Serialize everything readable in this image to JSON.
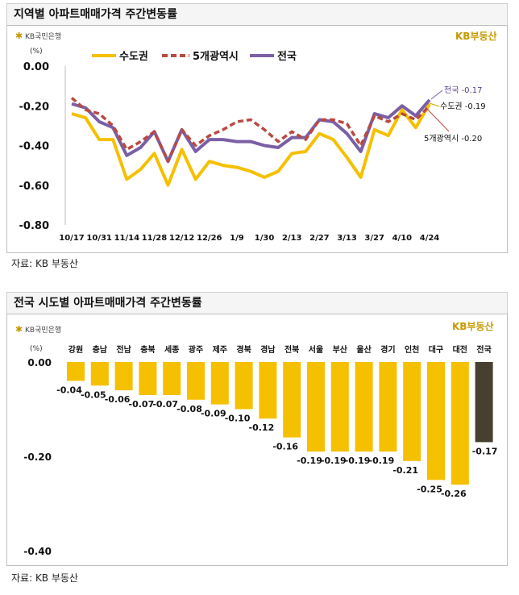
{
  "colors": {
    "metro": "#f5c000",
    "five_city": "#b84a42",
    "national": "#7b5fa5",
    "bar": "#f5c000",
    "bar_national": "#474031",
    "logo": "#c79a00"
  },
  "chart1": {
    "title": "지역별 아파트매매가격 주간변동률",
    "kb_bank": "KB국민은행",
    "kb_brand": "KB부동산",
    "unit": "(%)",
    "source": "자료: KB 부동산",
    "annotations": {
      "national": "전국 -0.17",
      "metro": "수도권 -0.19",
      "five_city": "5개광역시 -0.20"
    }
  },
  "chart2": {
    "title": "전국 시도별 아파트매매가격 주간변동률",
    "kb_bank": "KB국민은행",
    "kb_brand": "KB부동산",
    "unit": "(%)",
    "source": "자료: KB 부동산"
  },
  "chart_data": [
    {
      "type": "line",
      "title": "지역별 아파트매매가격 주간변동률",
      "ylabel": "(%)",
      "ylim": [
        -0.8,
        0.0
      ],
      "yticks": [
        "0.00",
        "-0.20",
        "-0.40",
        "-0.60",
        "-0.80"
      ],
      "x_tick_labels": [
        "10/17",
        "10/31",
        "11/14",
        "11/28",
        "12/12",
        "12/26",
        "1/9",
        "1/30",
        "2/13",
        "2/27",
        "3/13",
        "3/27",
        "4/10",
        "4/24"
      ],
      "legend_position": "top",
      "series": [
        {
          "name": "수도권",
          "values": [
            -0.24,
            -0.26,
            -0.37,
            -0.37,
            -0.57,
            -0.52,
            -0.44,
            -0.6,
            -0.42,
            -0.57,
            -0.48,
            -0.5,
            -0.51,
            -0.53,
            -0.56,
            -0.53,
            -0.44,
            -0.43,
            -0.34,
            -0.37,
            -0.46,
            -0.56,
            -0.32,
            -0.35,
            -0.22,
            -0.31,
            -0.19
          ]
        },
        {
          "name": "5개광역시",
          "values": [
            -0.16,
            -0.22,
            -0.24,
            -0.3,
            -0.42,
            -0.38,
            -0.33,
            -0.48,
            -0.32,
            -0.4,
            -0.35,
            -0.32,
            -0.28,
            -0.27,
            -0.32,
            -0.38,
            -0.33,
            -0.37,
            -0.27,
            -0.27,
            -0.29,
            -0.4,
            -0.25,
            -0.28,
            -0.24,
            -0.27,
            -0.2
          ]
        },
        {
          "name": "전국",
          "values": [
            -0.19,
            -0.21,
            -0.28,
            -0.31,
            -0.45,
            -0.41,
            -0.33,
            -0.48,
            -0.32,
            -0.43,
            -0.37,
            -0.37,
            -0.38,
            -0.38,
            -0.4,
            -0.41,
            -0.36,
            -0.36,
            -0.27,
            -0.28,
            -0.34,
            -0.43,
            -0.24,
            -0.26,
            -0.2,
            -0.25,
            -0.17
          ]
        }
      ]
    },
    {
      "type": "bar",
      "title": "전국 시도별 아파트매매가격 주간변동률",
      "ylabel": "(%)",
      "ylim": [
        -0.4,
        0.0
      ],
      "yticks": [
        "0.00",
        "-0.20",
        "-0.40"
      ],
      "categories": [
        "강원",
        "충남",
        "전남",
        "충북",
        "세종",
        "광주",
        "제주",
        "경북",
        "경남",
        "전북",
        "서울",
        "부산",
        "울산",
        "경기",
        "인천",
        "대구",
        "대전",
        "전국"
      ],
      "values": [
        -0.04,
        -0.05,
        -0.06,
        -0.07,
        -0.07,
        -0.08,
        -0.09,
        -0.1,
        -0.12,
        -0.16,
        -0.19,
        -0.19,
        -0.19,
        -0.19,
        -0.21,
        -0.25,
        -0.26,
        -0.17
      ],
      "value_labels": [
        "-0.04",
        "-0.05",
        "-0.06",
        "-0.07",
        "-0.07",
        "-0.08",
        "-0.09",
        "-0.10",
        "-0.12",
        "-0.16",
        "-0.19",
        "-0.19",
        "-0.19",
        "-0.19",
        "-0.21",
        "-0.25",
        "-0.26",
        "-0.17"
      ]
    }
  ]
}
